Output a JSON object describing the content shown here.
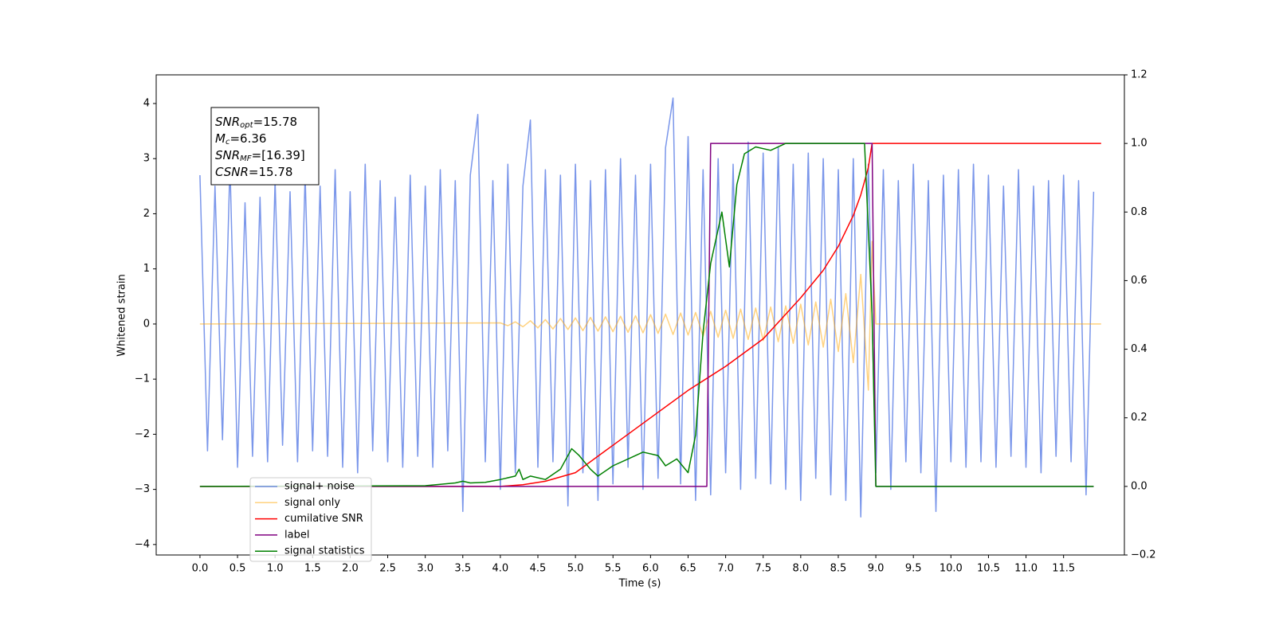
{
  "chart_data": {
    "type": "line",
    "xlabel": "Time (s)",
    "ylabel": "Whitened strain",
    "xlim": [
      -0.583,
      12.31
    ],
    "ylim": [
      -4.19,
      4.52
    ],
    "y2lim": [
      -0.2,
      1.2
    ],
    "xticks": [
      {
        "value": 0,
        "label": "0.0"
      },
      {
        "value": 0.5,
        "label": "0.5"
      },
      {
        "value": 1,
        "label": "1.0"
      },
      {
        "value": 1.5,
        "label": "1.5"
      },
      {
        "value": 2,
        "label": "2.0"
      },
      {
        "value": 2.5,
        "label": "2.5"
      },
      {
        "value": 3,
        "label": "3.0"
      },
      {
        "value": 3.5,
        "label": "3.5"
      },
      {
        "value": 4,
        "label": "4.0"
      },
      {
        "value": 4.5,
        "label": "4.5"
      },
      {
        "value": 5,
        "label": "5.0"
      },
      {
        "value": 5.5,
        "label": "5.5"
      },
      {
        "value": 6,
        "label": "6.0"
      },
      {
        "value": 6.5,
        "label": "6.5"
      },
      {
        "value": 7,
        "label": "7.0"
      },
      {
        "value": 7.5,
        "label": "7.5"
      },
      {
        "value": 8,
        "label": "8.0"
      },
      {
        "value": 8.5,
        "label": "8.5"
      },
      {
        "value": 9,
        "label": "9.0"
      },
      {
        "value": 9.5,
        "label": "9.5"
      },
      {
        "value": 10,
        "label": "10.0"
      },
      {
        "value": 10.5,
        "label": "10.5"
      },
      {
        "value": 11,
        "label": "11.0"
      },
      {
        "value": 11.5,
        "label": "11.5"
      }
    ],
    "yticks": [
      {
        "value": -4,
        "label": "−4"
      },
      {
        "value": -3,
        "label": "−3"
      },
      {
        "value": -2,
        "label": "−2"
      },
      {
        "value": -1,
        "label": "−1"
      },
      0,
      1,
      2,
      3,
      4
    ],
    "y2ticks": [
      {
        "value": -0.2,
        "label": "−0.2"
      },
      {
        "value": 0,
        "label": "0.0"
      },
      0.2,
      0.4,
      0.6,
      0.8,
      {
        "value": 1,
        "label": "1.0"
      },
      1.2
    ],
    "annotation": [
      {
        "text": "SNR",
        "sub": "opt",
        "value": "=15.78"
      },
      {
        "text": "M",
        "sub": "c",
        "value": "=6.36"
      },
      {
        "text": "SNR",
        "sub": "MF",
        "value": "=[16.39]"
      },
      {
        "text": "CSNR",
        "sub": null,
        "value": "=15.78"
      }
    ],
    "series": [
      {
        "name": "signal+ noise",
        "color": "#4169e1",
        "alpha": 0.7,
        "x": [
          0.0,
          0.1,
          0.2,
          0.3,
          0.4,
          0.5,
          0.6,
          0.7,
          0.8,
          0.9,
          1.0,
          1.1,
          1.2,
          1.3,
          1.4,
          1.5,
          1.6,
          1.7,
          1.8,
          1.9,
          2.0,
          2.1,
          2.2,
          2.3,
          2.4,
          2.5,
          2.6,
          2.7,
          2.8,
          2.9,
          3.0,
          3.1,
          3.2,
          3.3,
          3.4,
          3.5,
          3.6,
          3.7,
          3.8,
          3.9,
          4.0,
          4.1,
          4.2,
          4.3,
          4.4,
          4.5,
          4.6,
          4.7,
          4.8,
          4.9,
          5.0,
          5.1,
          5.2,
          5.3,
          5.4,
          5.5,
          5.6,
          5.7,
          5.8,
          5.9,
          6.0,
          6.1,
          6.2,
          6.3,
          6.4,
          6.5,
          6.6,
          6.7,
          6.8,
          6.9,
          7.0,
          7.1,
          7.2,
          7.3,
          7.4,
          7.5,
          7.6,
          7.7,
          7.8,
          7.9,
          8.0,
          8.1,
          8.2,
          8.3,
          8.4,
          8.5,
          8.6,
          8.7,
          8.8,
          8.9,
          9.0,
          9.1,
          9.2,
          9.3,
          9.4,
          9.5,
          9.6,
          9.7,
          9.8,
          9.9,
          10.0,
          10.1,
          10.2,
          10.3,
          10.4,
          10.5,
          10.6,
          10.7,
          10.8,
          10.9,
          11.0,
          11.1,
          11.2,
          11.3,
          11.4,
          11.5,
          11.6,
          11.7,
          11.8,
          11.9
        ],
        "values": [
          2.7,
          -2.3,
          2.5,
          -2.1,
          2.9,
          -2.6,
          2.2,
          -2.4,
          2.3,
          -2.5,
          2.6,
          -2.2,
          2.4,
          -2.5,
          2.7,
          -2.3,
          2.5,
          -2.4,
          2.8,
          -2.6,
          2.4,
          -2.7,
          2.9,
          -2.3,
          2.6,
          -2.5,
          2.3,
          -2.6,
          2.7,
          -2.4,
          2.5,
          -2.6,
          2.8,
          -2.3,
          2.6,
          -3.4,
          2.7,
          3.8,
          -2.5,
          2.6,
          -3.0,
          2.9,
          -2.7,
          2.5,
          3.7,
          -2.6,
          2.8,
          -2.5,
          2.7,
          -3.3,
          2.9,
          -2.7,
          2.6,
          -3.2,
          2.8,
          -2.9,
          3.0,
          -2.6,
          2.7,
          -3.0,
          2.9,
          -2.8,
          3.2,
          4.1,
          -2.9,
          3.4,
          -3.2,
          2.8,
          -3.1,
          3.0,
          -2.7,
          2.9,
          -3.0,
          3.3,
          -2.8,
          3.1,
          -2.9,
          3.2,
          -3.0,
          2.9,
          -3.2,
          3.1,
          -2.8,
          3.0,
          -3.1,
          2.8,
          -3.2,
          3.0,
          -3.5,
          2.9,
          -2.7,
          2.8,
          -3.0,
          2.6,
          -2.5,
          2.9,
          -2.7,
          2.6,
          -3.4,
          2.7,
          -2.5,
          2.8,
          -2.6,
          2.9,
          -2.5,
          2.7,
          -2.6,
          2.5,
          -2.4,
          2.8,
          -2.6,
          2.5,
          -2.7,
          2.6,
          -2.4,
          2.7,
          -2.5,
          2.6,
          -3.1,
          2.4
        ]
      },
      {
        "name": "signal only",
        "color": "#ffa500",
        "alpha": 0.5,
        "x": [
          0.0,
          4.0,
          4.1,
          4.2,
          4.3,
          4.4,
          4.5,
          4.6,
          4.7,
          4.8,
          4.9,
          5.0,
          5.1,
          5.2,
          5.3,
          5.4,
          5.5,
          5.6,
          5.7,
          5.8,
          5.9,
          6.0,
          6.1,
          6.2,
          6.3,
          6.4,
          6.5,
          6.6,
          6.7,
          6.8,
          6.9,
          7.0,
          7.1,
          7.2,
          7.3,
          7.4,
          7.5,
          7.6,
          7.7,
          7.8,
          7.9,
          8.0,
          8.1,
          8.2,
          8.3,
          8.4,
          8.5,
          8.6,
          8.7,
          8.8,
          8.9,
          8.95,
          9.0,
          12.0
        ],
        "values": [
          0,
          0.02,
          -0.03,
          0.04,
          -0.05,
          0.06,
          -0.07,
          0.08,
          -0.09,
          0.1,
          -0.1,
          0.11,
          -0.12,
          0.12,
          -0.13,
          0.13,
          -0.14,
          0.14,
          -0.15,
          0.15,
          -0.16,
          0.17,
          -0.17,
          0.18,
          -0.19,
          0.2,
          -0.2,
          0.21,
          -0.22,
          0.23,
          -0.24,
          0.25,
          -0.26,
          0.27,
          -0.28,
          0.29,
          -0.3,
          0.31,
          -0.32,
          0.33,
          -0.35,
          0.36,
          -0.38,
          0.4,
          -0.42,
          0.45,
          -0.5,
          0.55,
          -0.7,
          0.9,
          -1.2,
          1.5,
          0,
          0
        ]
      },
      {
        "name": "cumilative SNR",
        "color": "#ff0000",
        "axis": "y2",
        "x": [
          0.0,
          4.0,
          4.3,
          4.6,
          5.0,
          5.5,
          6.0,
          6.5,
          7.0,
          7.5,
          8.0,
          8.3,
          8.5,
          8.7,
          8.8,
          8.9,
          8.95,
          9.0,
          12.0
        ],
        "values": [
          0,
          0,
          0.005,
          0.015,
          0.04,
          0.12,
          0.2,
          0.28,
          0.35,
          0.43,
          0.55,
          0.63,
          0.7,
          0.79,
          0.85,
          0.93,
          1.0,
          1.0,
          1.0
        ]
      },
      {
        "name": "label",
        "color": "#800080",
        "axis": "y2",
        "x": [
          0.0,
          6.75,
          6.8,
          8.95,
          9.0,
          11.9
        ],
        "values": [
          0,
          0,
          1,
          1,
          0,
          0
        ]
      },
      {
        "name": "signal statistics",
        "color": "#008000",
        "axis": "y2",
        "x": [
          0.0,
          3.0,
          3.4,
          3.5,
          3.6,
          3.8,
          4.0,
          4.2,
          4.25,
          4.3,
          4.4,
          4.6,
          4.8,
          4.95,
          5.05,
          5.2,
          5.3,
          5.5,
          5.7,
          5.9,
          6.1,
          6.2,
          6.35,
          6.5,
          6.6,
          6.7,
          6.8,
          6.95,
          7.05,
          7.15,
          7.25,
          7.4,
          7.6,
          7.8,
          8.0,
          8.85,
          8.95,
          9.0,
          11.9
        ],
        "values": [
          0,
          0.002,
          0.01,
          0.015,
          0.01,
          0.012,
          0.02,
          0.03,
          0.05,
          0.02,
          0.03,
          0.02,
          0.05,
          0.11,
          0.09,
          0.05,
          0.03,
          0.06,
          0.08,
          0.1,
          0.09,
          0.06,
          0.08,
          0.04,
          0.15,
          0.45,
          0.65,
          0.8,
          0.64,
          0.88,
          0.97,
          0.99,
          0.98,
          1.0,
          1.0,
          1.0,
          0.5,
          0,
          0
        ]
      }
    ]
  }
}
